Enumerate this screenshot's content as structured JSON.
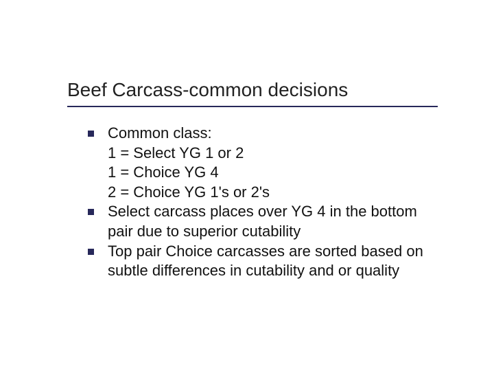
{
  "slide": {
    "title": "Beef Carcass-common decisions",
    "title_color": "#222222",
    "title_fontsize": 28,
    "underline_color": "#27285a",
    "bullet_color": "#27285a",
    "bullet_size": 9,
    "body_fontsize": 22,
    "body_color": "#111111",
    "background": "#ffffff",
    "items": [
      "Common class:\n1 = Select YG 1 or 2\n1 = Choice YG 4\n2 = Choice YG 1's or 2's",
      "Select carcass places over YG 4 in the bottom pair due to superior cutability",
      "Top pair Choice carcasses are sorted based on subtle differences in cutability and or quality"
    ]
  }
}
